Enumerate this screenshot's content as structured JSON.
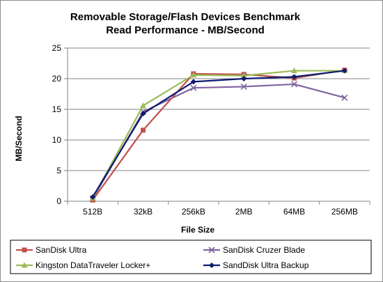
{
  "chart_data": {
    "type": "line",
    "title": "Removable Storage/Flash Devices Benchmark",
    "subtitle": "Read Performance - MB/Second",
    "xlabel": "File Size",
    "ylabel": "MB/Second",
    "categories": [
      "512B",
      "32kB",
      "256kB",
      "2MB",
      "64MB",
      "256MB"
    ],
    "ylim": [
      0,
      25
    ],
    "yticks": [
      0,
      5,
      10,
      15,
      20,
      25
    ],
    "grid": "horizontal",
    "legend_position": "bottom",
    "series": [
      {
        "name": "SanDisk Ultra",
        "color": "#c0504d",
        "marker": "square",
        "values": [
          0.2,
          11.6,
          20.8,
          20.7,
          20.1,
          21.4
        ]
      },
      {
        "name": "SanDisk Cruzer Blade",
        "color": "#8064a2",
        "marker": "x",
        "values": [
          0.4,
          14.6,
          18.5,
          18.7,
          19.1,
          16.9
        ]
      },
      {
        "name": "Kingston DataTraveler Locker+",
        "color": "#9bbb59",
        "marker": "triangle",
        "values": [
          0.5,
          15.6,
          20.6,
          20.5,
          21.3,
          21.3
        ]
      },
      {
        "name": "SandDisk Ultra Backup",
        "color": "#0d1b6e",
        "marker": "diamond",
        "values": [
          0.7,
          14.3,
          19.5,
          20.0,
          20.3,
          21.3
        ]
      }
    ]
  }
}
